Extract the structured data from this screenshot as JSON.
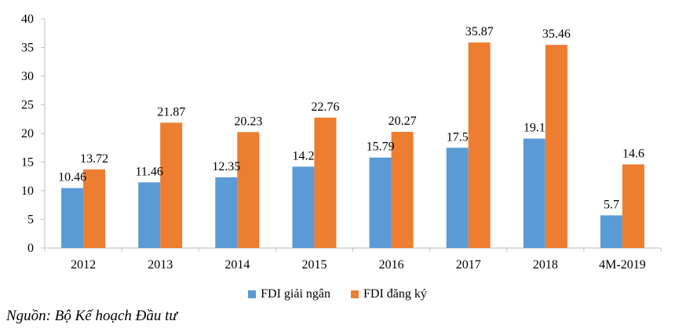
{
  "chart_data": {
    "type": "bar",
    "categories": [
      "2012",
      "2013",
      "2014",
      "2015",
      "2016",
      "2017",
      "2018",
      "4M-2019"
    ],
    "series": [
      {
        "name": "FDI giải ngân",
        "color": "#5B9BD5",
        "values": [
          10.46,
          11.46,
          12.35,
          14.2,
          15.79,
          17.5,
          19.1,
          5.7
        ],
        "labels": [
          "10.46",
          "11.46",
          "12.35",
          "14.2",
          "15.79",
          "17.5",
          "19.1",
          "5.7"
        ]
      },
      {
        "name": "FDI đăng ký",
        "color": "#ED7D31",
        "values": [
          13.72,
          21.87,
          20.23,
          22.76,
          20.27,
          35.87,
          35.46,
          14.6
        ],
        "labels": [
          "13.72",
          "21.87",
          "20.23",
          "22.76",
          "20.27",
          "35.87",
          "35.46",
          "14.6"
        ]
      }
    ],
    "ylim": [
      0,
      40
    ],
    "yticks": [
      "0",
      "5",
      "10",
      "15",
      "20",
      "25",
      "30",
      "35",
      "40"
    ],
    "grid": false,
    "legend": "bottom"
  },
  "source_note": "Nguồn: Bộ Kế hoạch Đầu tư"
}
